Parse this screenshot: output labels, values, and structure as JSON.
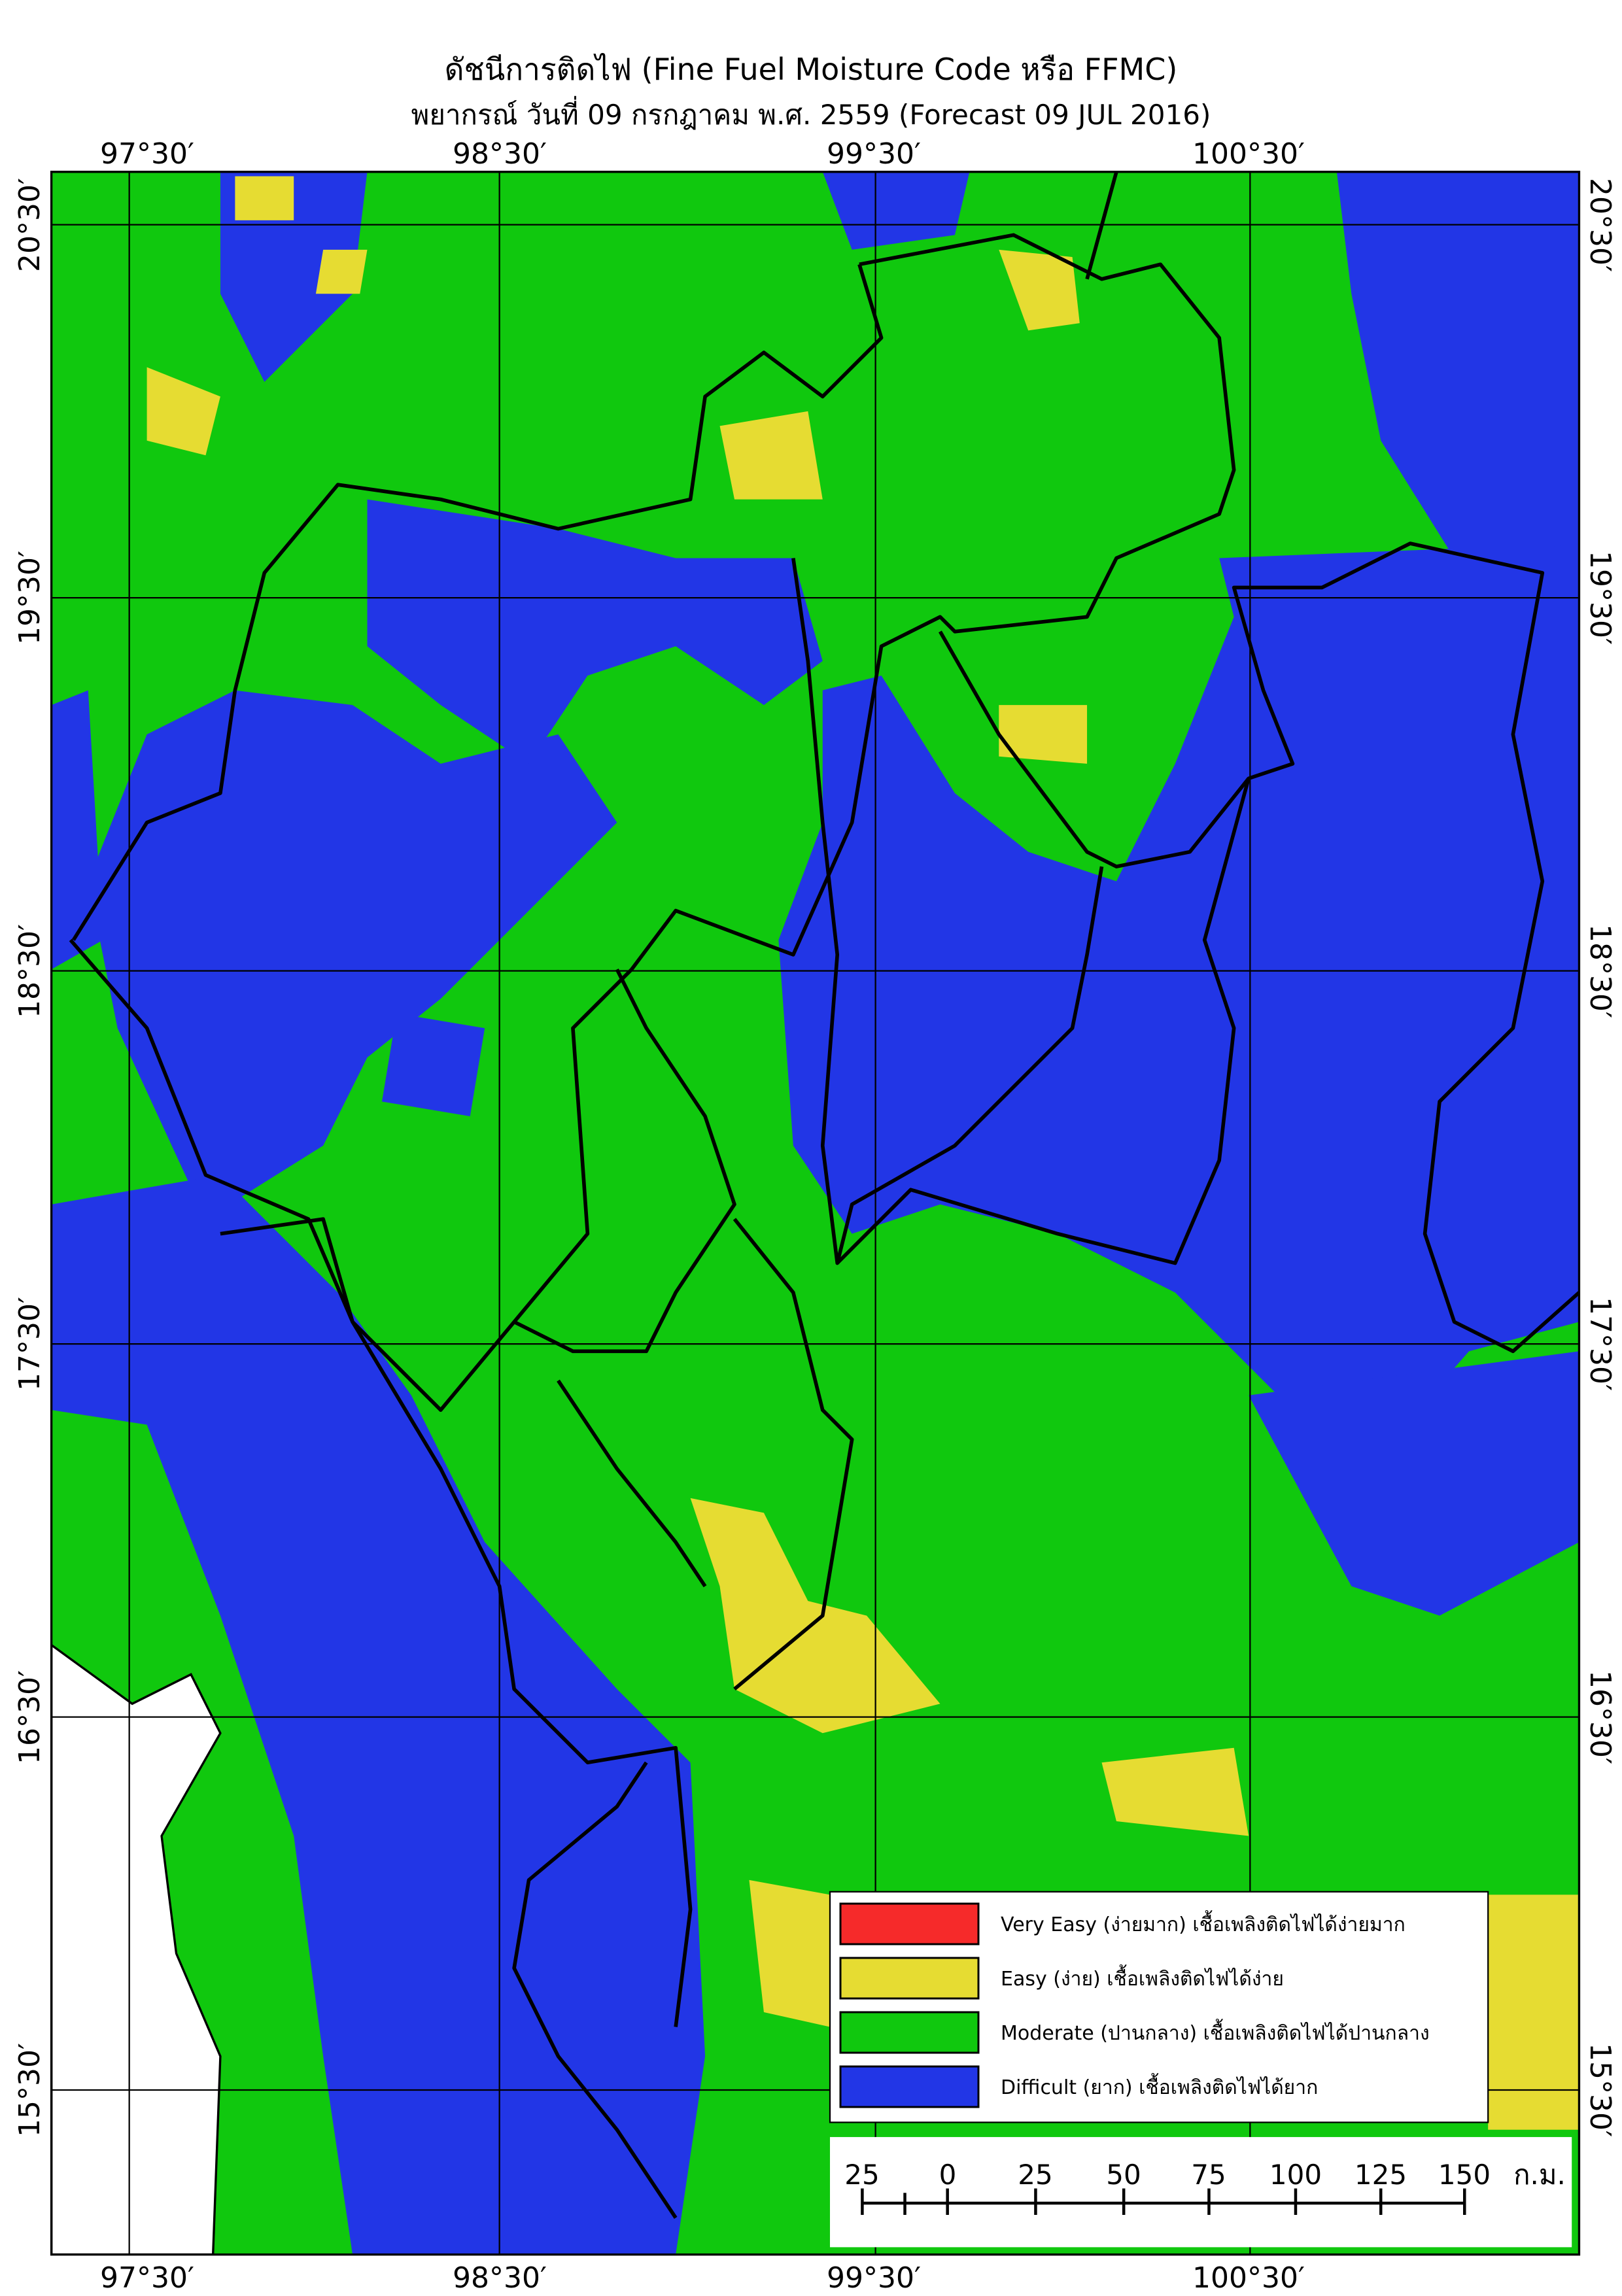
{
  "title": "ดัชนีการติดไฟ (Fine Fuel Moisture Code หรือ FFMC)",
  "subtitle": "พยากรณ์ วันที่ 09 กรกฎาคม พ.ศ. 2559 (Forecast 09 JUL 2016)",
  "longitude_labels": [
    "97°30′",
    "98°30′",
    "99°30′",
    "100°30′"
  ],
  "latitude_labels": [
    "20°30′",
    "19°30′",
    "18°30′",
    "17°30′",
    "16°30′",
    "15°30′"
  ],
  "legend": [
    {
      "label": "Very Easy (ง่ายมาก) เชื้อเพลิงติดไฟได้ง่ายมาก",
      "color": "#f62a2a"
    },
    {
      "label": "Easy (ง่าย) เชื้อเพลิงติดไฟได้ง่าย",
      "color": "#e6dc32"
    },
    {
      "label": "Moderate (ปานกลาง) เชื้อเพลิงติดไฟได้ปานกลาง",
      "color": "#10c80e"
    },
    {
      "label": "Difficult (ยาก) เชื้อเพลิงติดไฟได้ยาก",
      "color": "#2236e6"
    }
  ],
  "scale_bar": {
    "labels": [
      25,
      0,
      25,
      50,
      75,
      100,
      125,
      150
    ],
    "unit": "ก.ม."
  }
}
